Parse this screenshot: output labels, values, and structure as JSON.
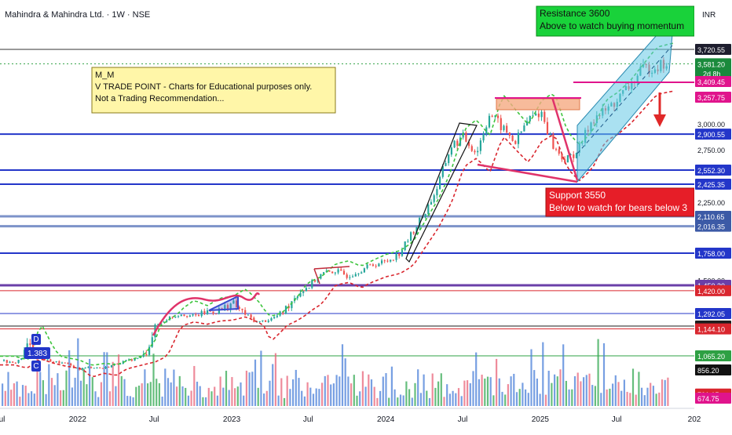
{
  "header": {
    "title": "Mahindra & Mahindra Ltd. · 1W · NSE",
    "currency": "INR"
  },
  "chart_data": {
    "type": "candlestick",
    "ylim": [
      550,
      4000
    ],
    "x_start": "2021-07-01",
    "x_end": "2026-01-01",
    "x_ticks": [
      {
        "date": "2021-07-01",
        "label": "Jul"
      },
      {
        "date": "2022-01-01",
        "label": "2022"
      },
      {
        "date": "2022-07-01",
        "label": "Jul"
      },
      {
        "date": "2023-01-01",
        "label": "2023"
      },
      {
        "date": "2023-07-01",
        "label": "Jul"
      },
      {
        "date": "2024-01-01",
        "label": "2024"
      },
      {
        "date": "2024-07-01",
        "label": "Jul"
      },
      {
        "date": "2025-01-01",
        "label": "2025"
      },
      {
        "date": "2025-07-01",
        "label": "Jul"
      },
      {
        "date": "2026-01-01",
        "label": "202"
      }
    ],
    "y_tick_labels": [
      "3,000.00",
      "2,750.00",
      "2,250.00",
      "1,500.00"
    ],
    "price_tags": [
      {
        "label": "3,720.55",
        "value": 3720.55,
        "color": "#1e1e2e"
      },
      {
        "label": "3,581.20",
        "value": 3581.2,
        "color": "#1a8a3c",
        "sub": "2d 8h"
      },
      {
        "label": "3,409.45",
        "value": 3409.45,
        "color": "#e0148c"
      },
      {
        "label": "3,257.75",
        "value": 3257.75,
        "color": "#e0148c"
      },
      {
        "label": "2,900.55",
        "value": 2900.55,
        "color": "#2336c9"
      },
      {
        "label": "2,552.30",
        "value": 2552.3,
        "color": "#2336c9"
      },
      {
        "label": "2,425.35",
        "value": 2425.35,
        "color": "#2336c9"
      },
      {
        "label": "2,110.65",
        "value": 2110.65,
        "color": "#3c5aa6"
      },
      {
        "label": "2,016.35",
        "value": 2016.35,
        "color": "#3c5aa6"
      },
      {
        "label": "1,758.00",
        "value": 1758,
        "color": "#2336c9"
      },
      {
        "label": "1,450.30",
        "value": 1450.3,
        "color": "#6a3fa8"
      },
      {
        "label": "1,420.00",
        "value": 1420,
        "color": "#d9262e"
      },
      {
        "label": "1,292.05",
        "value": 1292.05,
        "color": "#2336c9"
      },
      {
        "label": "1,152.35",
        "value": 1152.35,
        "color": "#1e1e1e"
      },
      {
        "label": "1,144.10",
        "value": 1144.1,
        "color": "#d9262e"
      },
      {
        "label": "1,065.20",
        "value": 1065.2,
        "color": "#2ea043"
      },
      {
        "label": "856.20",
        "value": 856.2,
        "color": "#111111"
      },
      {
        "label": "701.15",
        "value": 701.15,
        "color": "#d9262e"
      },
      {
        "label": "674.75",
        "value": 674.75,
        "color": "#e0148c"
      }
    ],
    "levels": [
      {
        "value": 3720.55,
        "color": "#333333",
        "width": 1
      },
      {
        "value": 3581.2,
        "color": "#2ea043",
        "width": 1,
        "dash": "2,3"
      },
      {
        "value": 2900.55,
        "color": "#2336c9",
        "width": 2
      },
      {
        "value": 2552.3,
        "color": "#2336c9",
        "width": 2
      },
      {
        "value": 2425.35,
        "color": "#2336c9",
        "width": 2
      },
      {
        "value": 2110.65,
        "color": "#7d93c9",
        "width": 3
      },
      {
        "value": 2016.35,
        "color": "#7d93c9",
        "width": 3
      },
      {
        "value": 1758,
        "color": "#2336c9",
        "width": 2
      },
      {
        "value": 1450.3,
        "color": "#6a3fa8",
        "width": 3
      },
      {
        "value": 1420,
        "color": "#d9262e",
        "width": 1
      },
      {
        "value": 1292.05,
        "color": "#2336c9",
        "width": 1
      },
      {
        "value": 1152.35,
        "color": "#1e1e1e",
        "width": 1
      },
      {
        "value": 1144.1,
        "color": "#d9262e",
        "width": 1
      },
      {
        "value": 1065.2,
        "color": "#2ea043",
        "width": 1
      }
    ],
    "price_path": [
      [
        "2021-07-01",
        1000
      ],
      [
        "2021-08-01",
        950
      ],
      [
        "2021-09-01",
        1100
      ],
      [
        "2021-10-01",
        1030
      ],
      [
        "2021-11-01",
        980
      ],
      [
        "2021-12-01",
        950
      ],
      [
        "2022-01-01",
        870
      ],
      [
        "2022-02-01",
        900
      ],
      [
        "2022-03-01",
        880
      ],
      [
        "2022-04-01",
        950
      ],
      [
        "2022-05-01",
        1000
      ],
      [
        "2022-06-01",
        1050
      ],
      [
        "2022-07-01",
        1150
      ],
      [
        "2022-08-01",
        1240
      ],
      [
        "2022-09-01",
        1290
      ],
      [
        "2022-10-01",
        1260
      ],
      [
        "2022-11-01",
        1300
      ],
      [
        "2022-12-01",
        1310
      ],
      [
        "2023-01-01",
        1350
      ],
      [
        "2023-02-01",
        1280
      ],
      [
        "2023-03-01",
        1190
      ],
      [
        "2023-04-01",
        1230
      ],
      [
        "2023-05-01",
        1300
      ],
      [
        "2023-06-01",
        1400
      ],
      [
        "2023-07-01",
        1450
      ],
      [
        "2023-08-01",
        1560
      ],
      [
        "2023-09-01",
        1590
      ],
      [
        "2023-10-01",
        1540
      ],
      [
        "2023-11-01",
        1600
      ],
      [
        "2023-12-01",
        1650
      ],
      [
        "2024-01-01",
        1680
      ],
      [
        "2024-02-01",
        1760
      ],
      [
        "2024-03-01",
        1950
      ],
      [
        "2024-04-01",
        2150
      ],
      [
        "2024-05-01",
        2400
      ],
      [
        "2024-06-01",
        2780
      ],
      [
        "2024-07-01",
        2870
      ],
      [
        "2024-08-01",
        2720
      ],
      [
        "2024-09-01",
        3100
      ],
      [
        "2024-10-01",
        2960
      ],
      [
        "2024-11-01",
        2820
      ],
      [
        "2024-12-01",
        3040
      ],
      [
        "2025-01-01",
        3120
      ],
      [
        "2025-02-01",
        2760
      ],
      [
        "2025-03-01",
        2640
      ],
      [
        "2025-04-01",
        2760
      ],
      [
        "2025-05-01",
        3040
      ],
      [
        "2025-06-01",
        3120
      ],
      [
        "2025-07-01",
        3230
      ],
      [
        "2025-08-01",
        3380
      ],
      [
        "2025-09-01",
        3530
      ],
      [
        "2025-10-01",
        3560
      ],
      [
        "2025-11-01",
        3581.2
      ]
    ],
    "annotations": {
      "note": [
        "M_M",
        "V TRADE POINT - Charts for Educational purposes only.",
        "Not a Trading Recommendation..."
      ],
      "resistance": [
        "Resistance  3600",
        "Above to watch buying momentum"
      ],
      "support": [
        "Support 3550",
        "Below to watch for bears below 3"
      ],
      "markers": [
        "D",
        "1.383",
        "C"
      ]
    }
  }
}
